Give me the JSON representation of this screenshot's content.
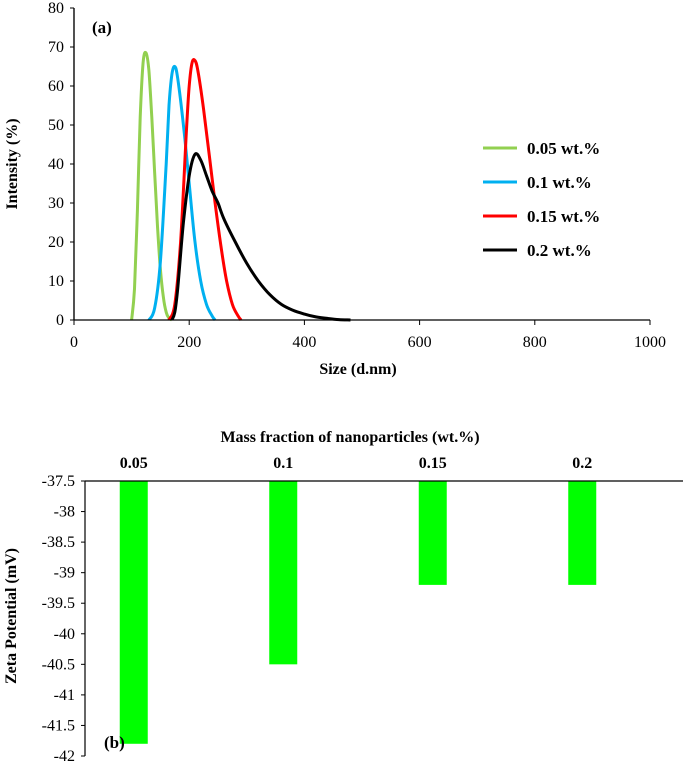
{
  "chart_data": [
    {
      "panel": "(a)",
      "type": "line",
      "xlabel": "Size (d.nm)",
      "ylabel": "Intensity (%)",
      "xlim": [
        0,
        1000
      ],
      "ylim": [
        0,
        80
      ],
      "xticks": [
        0,
        200,
        400,
        600,
        800,
        1000
      ],
      "yticks": [
        0,
        10,
        20,
        30,
        40,
        50,
        60,
        70,
        80
      ],
      "legend_position": "right",
      "series": [
        {
          "name": "0.05 wt.%",
          "color": "#92d050",
          "x": [
            100,
            105,
            110,
            115,
            120,
            125,
            130,
            135,
            140,
            145,
            150,
            155,
            160,
            165,
            170
          ],
          "y": [
            0,
            8,
            28,
            52,
            66,
            68.5,
            64,
            52,
            38,
            24,
            13,
            6,
            2,
            0.5,
            0
          ]
        },
        {
          "name": "0.1 wt.%",
          "color": "#00b0f0",
          "x": [
            130,
            140,
            150,
            160,
            165,
            170,
            175,
            180,
            190,
            200,
            210,
            220,
            230,
            240,
            245
          ],
          "y": [
            0,
            3,
            15,
            40,
            55,
            63,
            65,
            62,
            50,
            35,
            20,
            10,
            4,
            1,
            0
          ]
        },
        {
          "name": "0.15 wt.%",
          "color": "#ff0000",
          "x": [
            165,
            175,
            185,
            195,
            200,
            205,
            210,
            215,
            225,
            235,
            245,
            255,
            265,
            275,
            285,
            290
          ],
          "y": [
            0,
            4,
            20,
            48,
            60,
            66,
            66.5,
            64,
            54,
            42,
            30,
            19,
            10,
            4,
            1,
            0
          ]
        },
        {
          "name": "0.2 wt.%",
          "color": "#000000",
          "x": [
            170,
            175,
            180,
            190,
            200,
            210,
            220,
            230,
            240,
            250,
            260,
            280,
            300,
            320,
            340,
            360,
            380,
            400,
            420,
            440,
            460,
            480
          ],
          "y": [
            0,
            2,
            8,
            25,
            37,
            42.5,
            41,
            37,
            33,
            30,
            26,
            20,
            14.5,
            10,
            6.5,
            4,
            2.5,
            1.5,
            0.8,
            0.4,
            0.1,
            0
          ]
        }
      ]
    },
    {
      "panel": "(b)",
      "type": "bar",
      "title": "Mass fraction of nanoparticles (wt.%)",
      "ylabel": "Zeta Potential (mV)",
      "categories": [
        "0.05",
        "0.1",
        "0.15",
        "0.2"
      ],
      "values": [
        -41.8,
        -40.5,
        -39.2,
        -39.2
      ],
      "ylim": [
        -42,
        -37.5
      ],
      "yticks": [
        -37.5,
        -38,
        -38.5,
        -39,
        -39.5,
        -40,
        -40.5,
        -41,
        -41.5,
        -42
      ],
      "bar_color": "#00ff00",
      "xaxis_position": "top"
    }
  ]
}
